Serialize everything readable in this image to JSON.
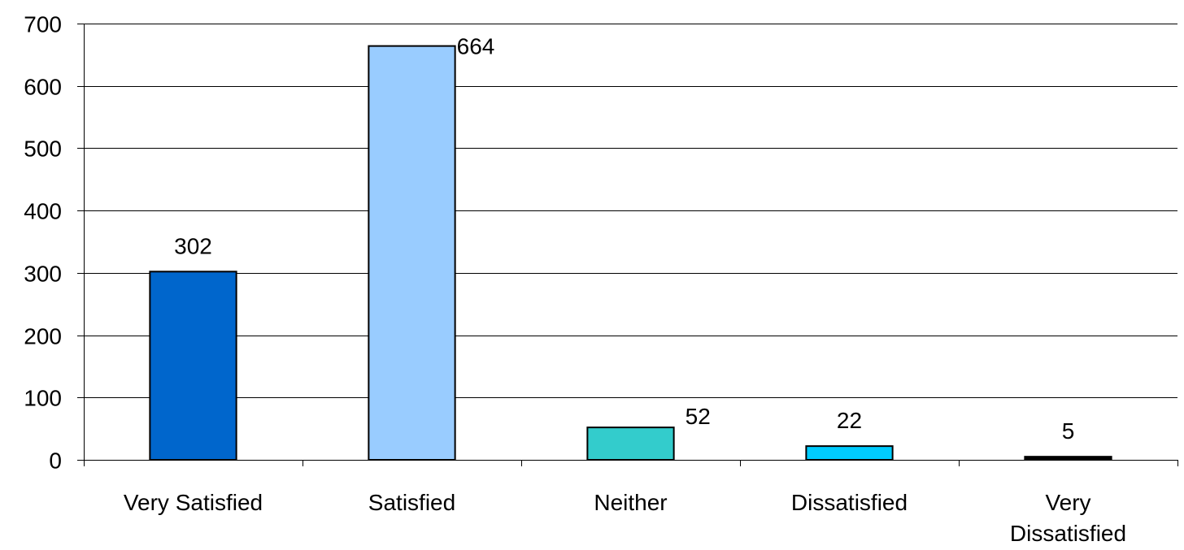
{
  "chart_data": {
    "type": "bar",
    "categories": [
      [
        "Very Satisfied"
      ],
      [
        "Satisfied"
      ],
      [
        "Neither"
      ],
      [
        "Dissatisfied"
      ],
      [
        "Very",
        "Dissatisfied"
      ]
    ],
    "values": [
      302,
      664,
      52,
      22,
      5
    ],
    "data_labels": [
      "302",
      "664",
      "52",
      "22",
      "5"
    ],
    "colors": [
      "#0066CC",
      "#99CCFF",
      "#33CCCC",
      "#00CCFF",
      "#000000"
    ],
    "title": "",
    "xlabel": "",
    "ylabel": "",
    "ylim": [
      0,
      700
    ],
    "yticks": [
      0,
      100,
      200,
      300,
      400,
      500,
      600,
      700
    ],
    "grid": true
  }
}
